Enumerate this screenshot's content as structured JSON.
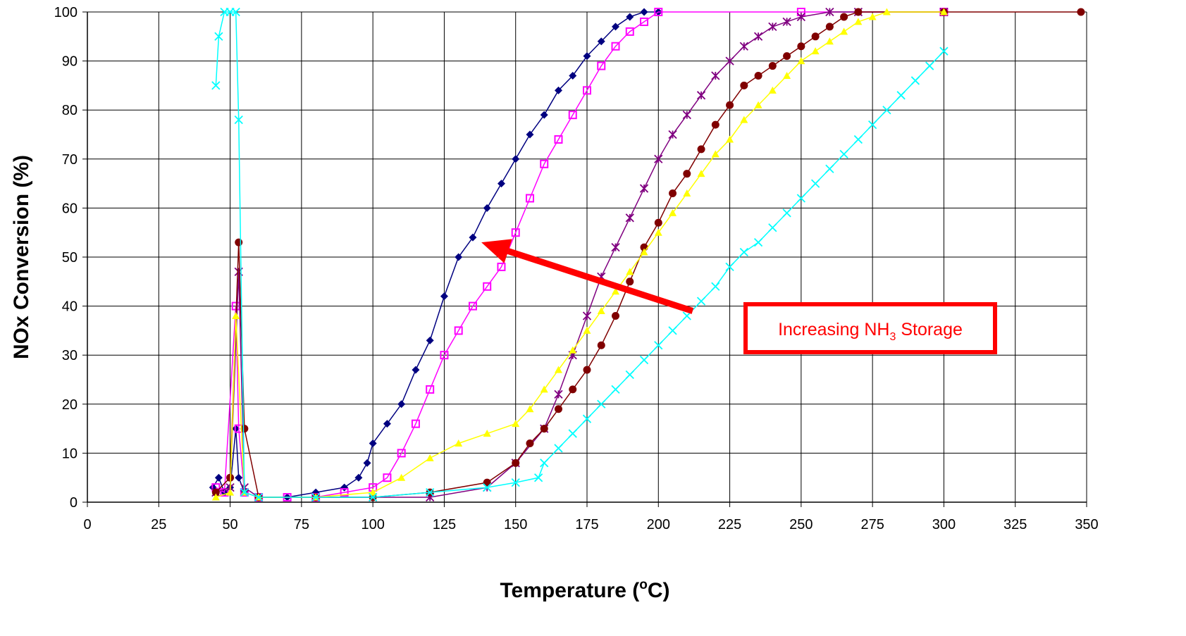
{
  "chart_data": {
    "type": "scatter",
    "title": "",
    "xlabel": "Temperature (",
    "xlabel_sup": "o",
    "xlabel_tail": "C)",
    "ylabel": "NOx Conversion (%)",
    "xlim": [
      0,
      350
    ],
    "ylim": [
      0,
      100
    ],
    "xticks": [
      0,
      25,
      50,
      75,
      100,
      125,
      150,
      175,
      200,
      225,
      250,
      275,
      300,
      325,
      350
    ],
    "yticks": [
      0,
      10,
      20,
      30,
      40,
      50,
      60,
      70,
      80,
      90,
      100
    ],
    "grid": true,
    "legend": "none",
    "series": [
      {
        "color": "#000080",
        "marker": "diamond",
        "x": [
          44,
          46,
          48,
          50,
          52,
          53,
          55,
          60,
          70,
          80,
          90,
          95,
          98,
          100,
          105,
          110,
          115,
          120,
          125,
          130,
          135,
          140,
          145,
          150,
          155,
          160,
          165,
          170,
          175,
          180,
          185,
          190,
          195,
          200
        ],
        "y": [
          3,
          5,
          2,
          3,
          15,
          5,
          2,
          1,
          1,
          2,
          3,
          5,
          8,
          12,
          16,
          20,
          27,
          33,
          42,
          50,
          54,
          60,
          65,
          70,
          75,
          79,
          84,
          87,
          91,
          94,
          97,
          99,
          100,
          100
        ]
      },
      {
        "color": "#ff00ff",
        "marker": "square",
        "x": [
          45,
          48,
          52,
          53,
          55,
          60,
          70,
          80,
          90,
          100,
          105,
          110,
          115,
          120,
          125,
          130,
          135,
          140,
          145,
          150,
          155,
          160,
          165,
          170,
          175,
          180,
          185,
          190,
          195,
          200,
          250,
          300
        ],
        "y": [
          3,
          2,
          40,
          15,
          2,
          1,
          1,
          1,
          2,
          3,
          5,
          10,
          16,
          23,
          30,
          35,
          40,
          44,
          48,
          55,
          62,
          69,
          74,
          79,
          84,
          89,
          93,
          96,
          98,
          100,
          100,
          100
        ]
      },
      {
        "color": "#800080",
        "marker": "star",
        "x": [
          45,
          50,
          53,
          55,
          60,
          80,
          100,
          120,
          140,
          150,
          160,
          165,
          170,
          175,
          180,
          185,
          190,
          195,
          200,
          205,
          210,
          215,
          220,
          225,
          230,
          235,
          240,
          245,
          250,
          260,
          270,
          300
        ],
        "y": [
          2,
          3,
          47,
          3,
          1,
          1,
          1,
          1,
          3,
          8,
          15,
          22,
          30,
          38,
          46,
          52,
          58,
          64,
          70,
          75,
          79,
          83,
          87,
          90,
          93,
          95,
          97,
          98,
          99,
          100,
          100,
          100
        ]
      },
      {
        "color": "#800000",
        "marker": "circle",
        "x": [
          45,
          50,
          53,
          55,
          60,
          80,
          100,
          120,
          140,
          150,
          155,
          160,
          165,
          170,
          175,
          180,
          185,
          190,
          195,
          200,
          205,
          210,
          215,
          220,
          225,
          230,
          235,
          240,
          245,
          250,
          255,
          260,
          265,
          270,
          300,
          348
        ],
        "y": [
          2,
          5,
          53,
          15,
          1,
          1,
          1,
          2,
          4,
          8,
          12,
          15,
          19,
          23,
          27,
          32,
          38,
          45,
          52,
          57,
          63,
          67,
          72,
          77,
          81,
          85,
          87,
          89,
          91,
          93,
          95,
          97,
          99,
          100,
          100,
          100
        ]
      },
      {
        "color": "#ffff00",
        "marker": "triangle",
        "x": [
          45,
          50,
          52,
          55,
          60,
          80,
          100,
          110,
          120,
          130,
          140,
          150,
          155,
          160,
          165,
          170,
          175,
          180,
          185,
          190,
          195,
          200,
          205,
          210,
          215,
          220,
          225,
          230,
          235,
          240,
          245,
          250,
          255,
          260,
          265,
          270,
          275,
          280,
          300
        ],
        "y": [
          1,
          2,
          38,
          2,
          1,
          1,
          2,
          5,
          9,
          12,
          14,
          16,
          19,
          23,
          27,
          31,
          35,
          39,
          43,
          47,
          51,
          55,
          59,
          63,
          67,
          71,
          74,
          78,
          81,
          84,
          87,
          90,
          92,
          94,
          96,
          98,
          99,
          100,
          100
        ]
      },
      {
        "color": "#00ffff",
        "marker": "x",
        "x": [
          45,
          46,
          48,
          50,
          52,
          53,
          55,
          60,
          80,
          100,
          120,
          140,
          150,
          158,
          160,
          165,
          170,
          175,
          180,
          185,
          190,
          195,
          200,
          205,
          210,
          215,
          220,
          225,
          230,
          235,
          240,
          245,
          250,
          255,
          260,
          265,
          270,
          275,
          280,
          285,
          290,
          295,
          300
        ],
        "y": [
          85,
          95,
          100,
          100,
          100,
          78,
          2,
          1,
          1,
          1,
          2,
          3,
          4,
          5,
          8,
          11,
          14,
          17,
          20,
          23,
          26,
          29,
          32,
          35,
          38,
          41,
          44,
          48,
          51,
          53,
          56,
          59,
          62,
          65,
          68,
          71,
          74,
          77,
          80,
          83,
          86,
          89,
          92
        ]
      }
    ],
    "annotation": {
      "text": "Increasing NH",
      "sub": "3",
      "tail": " Storage",
      "text_color": "#ff0000",
      "border_color": "#ff0000",
      "arrow_color": "#ff0000",
      "arrow_from": [
        212,
        39
      ],
      "arrow_to": [
        138,
        53
      ]
    }
  }
}
